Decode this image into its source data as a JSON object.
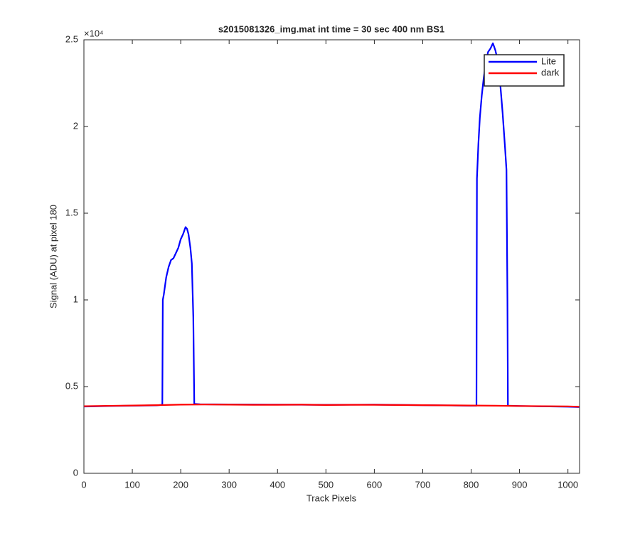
{
  "chart_data": {
    "type": "line",
    "title": "s2015081326_img.mat int time = 30 sec  400 nm BS1",
    "x_label": "Track Pixels",
    "y_label": "Signal (ADU) at pixel 180",
    "y_multiplier": "×10⁴",
    "xlim": [
      0,
      1024
    ],
    "xticks": [
      0,
      100,
      200,
      300,
      400,
      500,
      600,
      700,
      800,
      900,
      1000
    ],
    "ylim": [
      0,
      25000
    ],
    "yticks": [
      {
        "value": 0,
        "label": "0"
      },
      {
        "value": 5000,
        "label": "0.5"
      },
      {
        "value": 10000,
        "label": "1"
      },
      {
        "value": 15000,
        "label": "1.5"
      },
      {
        "value": 20000,
        "label": "2"
      },
      {
        "value": 25000,
        "label": "2.5"
      }
    ],
    "grid": false,
    "legend_position": "top-right",
    "series": [
      {
        "name": "Lite",
        "color": "#0000ff",
        "x": [
          0,
          50,
          100,
          150,
          162,
          163,
          165,
          170,
          175,
          180,
          185,
          190,
          195,
          200,
          205,
          210,
          213,
          216,
          220,
          223,
          226,
          228,
          240,
          300,
          400,
          500,
          600,
          700,
          800,
          811,
          812,
          815,
          818,
          822,
          826,
          830,
          835,
          840,
          845,
          850,
          855,
          860,
          865,
          870,
          873,
          875,
          876,
          900,
          950,
          1000,
          1023
        ],
        "values": [
          3850,
          3880,
          3900,
          3920,
          3950,
          10000,
          10300,
          11300,
          11900,
          12300,
          12400,
          12700,
          13000,
          13500,
          13800,
          14200,
          14100,
          13800,
          13000,
          12100,
          9000,
          4000,
          3980,
          3970,
          3960,
          3950,
          3960,
          3930,
          3900,
          3900,
          17000,
          19000,
          20500,
          21800,
          22800,
          23600,
          24300,
          24500,
          24800,
          24400,
          23800,
          22500,
          20800,
          18800,
          17500,
          10000,
          3900,
          3880,
          3860,
          3840,
          3820
        ]
      },
      {
        "name": "dark",
        "color": "#ff0000",
        "x": [
          0,
          50,
          100,
          150,
          200,
          250,
          300,
          350,
          400,
          450,
          500,
          550,
          600,
          650,
          700,
          750,
          800,
          850,
          900,
          950,
          1000,
          1023
        ],
        "values": [
          3870,
          3890,
          3910,
          3930,
          3960,
          3970,
          3960,
          3950,
          3950,
          3960,
          3940,
          3950,
          3950,
          3940,
          3930,
          3920,
          3910,
          3900,
          3880,
          3870,
          3860,
          3840
        ]
      }
    ]
  }
}
